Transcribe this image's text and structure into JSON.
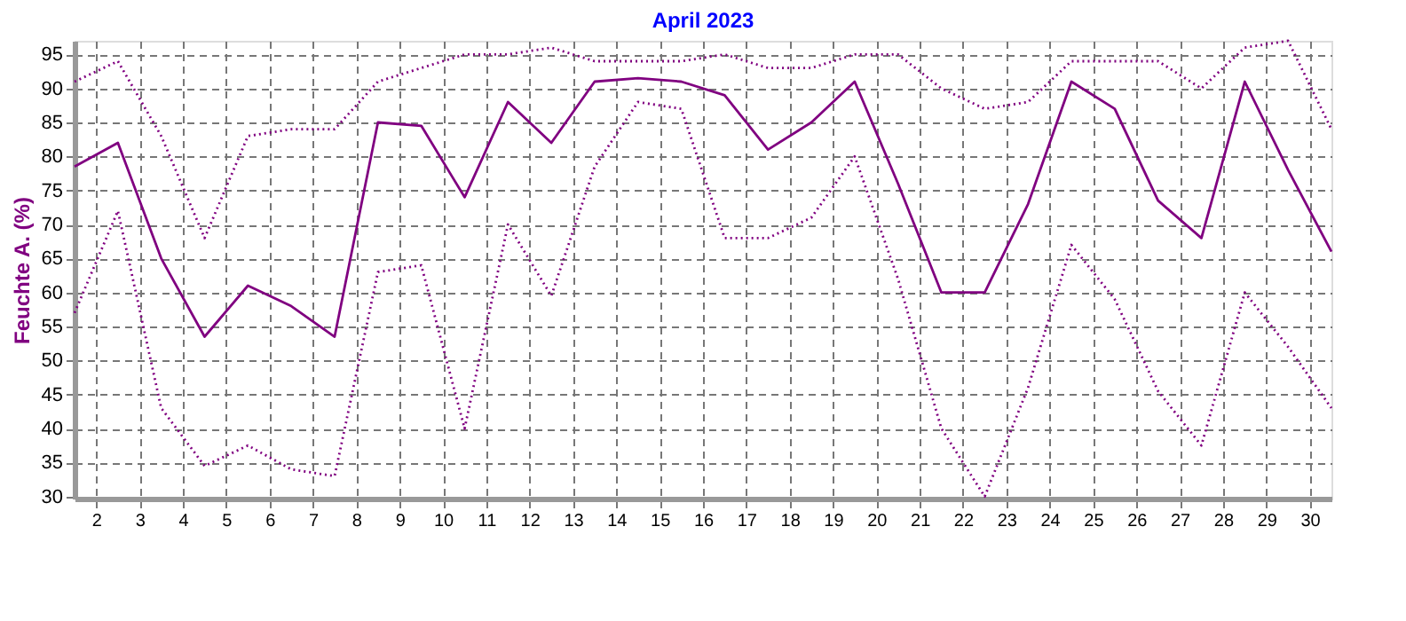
{
  "chart_data": {
    "type": "line",
    "title": "April 2023",
    "ylabel": "Feuchte A. (%)",
    "x": [
      1,
      2,
      3,
      4,
      5,
      6,
      7,
      8,
      9,
      10,
      11,
      12,
      13,
      14,
      15,
      16,
      17,
      18,
      19,
      20,
      21,
      22,
      23,
      24,
      25,
      26,
      27,
      28,
      29,
      30
    ],
    "series": [
      {
        "color": "#800080",
        "line_style": "dotted",
        "values": [
          91,
          94,
          83,
          68,
          83,
          84,
          84,
          91,
          93,
          95,
          95,
          96,
          94,
          94,
          94,
          95,
          93,
          93,
          95,
          95,
          90,
          87,
          88,
          94,
          94,
          94,
          90,
          96,
          97,
          84
        ]
      },
      {
        "color": "#800080",
        "line_style": "solid",
        "values": [
          78.5,
          82,
          65,
          53.5,
          61,
          58,
          53.5,
          85,
          84.5,
          74,
          88,
          82,
          91,
          91.5,
          91,
          89,
          81,
          85,
          91,
          76,
          60,
          60,
          73,
          91,
          87,
          73.5,
          68,
          91,
          78,
          66
        ]
      },
      {
        "color": "#800080",
        "line_style": "dotted",
        "values": [
          57,
          72,
          43,
          34.5,
          37.5,
          34,
          33,
          63,
          64,
          40,
          70,
          59.5,
          78.5,
          88,
          87,
          68,
          68,
          71,
          80,
          62,
          40,
          30,
          46,
          67,
          59,
          45.5,
          37.5,
          60,
          52,
          43
        ]
      }
    ],
    "xlim": [
      1,
      30
    ],
    "xticks": [
      {
        "value": 1.5,
        "label": "2"
      },
      {
        "value": 2.5,
        "label": "3"
      },
      {
        "value": 3.5,
        "label": "4"
      },
      {
        "value": 4.5,
        "label": "5"
      },
      {
        "value": 5.5,
        "label": "6"
      },
      {
        "value": 6.5,
        "label": "7"
      },
      {
        "value": 7.5,
        "label": "8"
      },
      {
        "value": 8.5,
        "label": "9"
      },
      {
        "value": 9.5,
        "label": "10"
      },
      {
        "value": 10.5,
        "label": "11"
      },
      {
        "value": 11.5,
        "label": "12"
      },
      {
        "value": 12.5,
        "label": "13"
      },
      {
        "value": 13.5,
        "label": "14"
      },
      {
        "value": 14.5,
        "label": "15"
      },
      {
        "value": 15.5,
        "label": "16"
      },
      {
        "value": 16.5,
        "label": "17"
      },
      {
        "value": 17.5,
        "label": "18"
      },
      {
        "value": 18.5,
        "label": "19"
      },
      {
        "value": 19.5,
        "label": "20"
      },
      {
        "value": 20.5,
        "label": "21"
      },
      {
        "value": 21.5,
        "label": "22"
      },
      {
        "value": 22.5,
        "label": "23"
      },
      {
        "value": 23.5,
        "label": "24"
      },
      {
        "value": 24.5,
        "label": "25"
      },
      {
        "value": 25.5,
        "label": "26"
      },
      {
        "value": 26.5,
        "label": "27"
      },
      {
        "value": 27.5,
        "label": "28"
      },
      {
        "value": 28.5,
        "label": "29"
      },
      {
        "value": 29.5,
        "label": "30"
      }
    ],
    "ylim": [
      29.7,
      97
    ],
    "yticks": [
      30,
      35,
      40,
      45,
      50,
      55,
      60,
      65,
      70,
      75,
      80,
      85,
      90,
      95
    ],
    "grid": true
  }
}
